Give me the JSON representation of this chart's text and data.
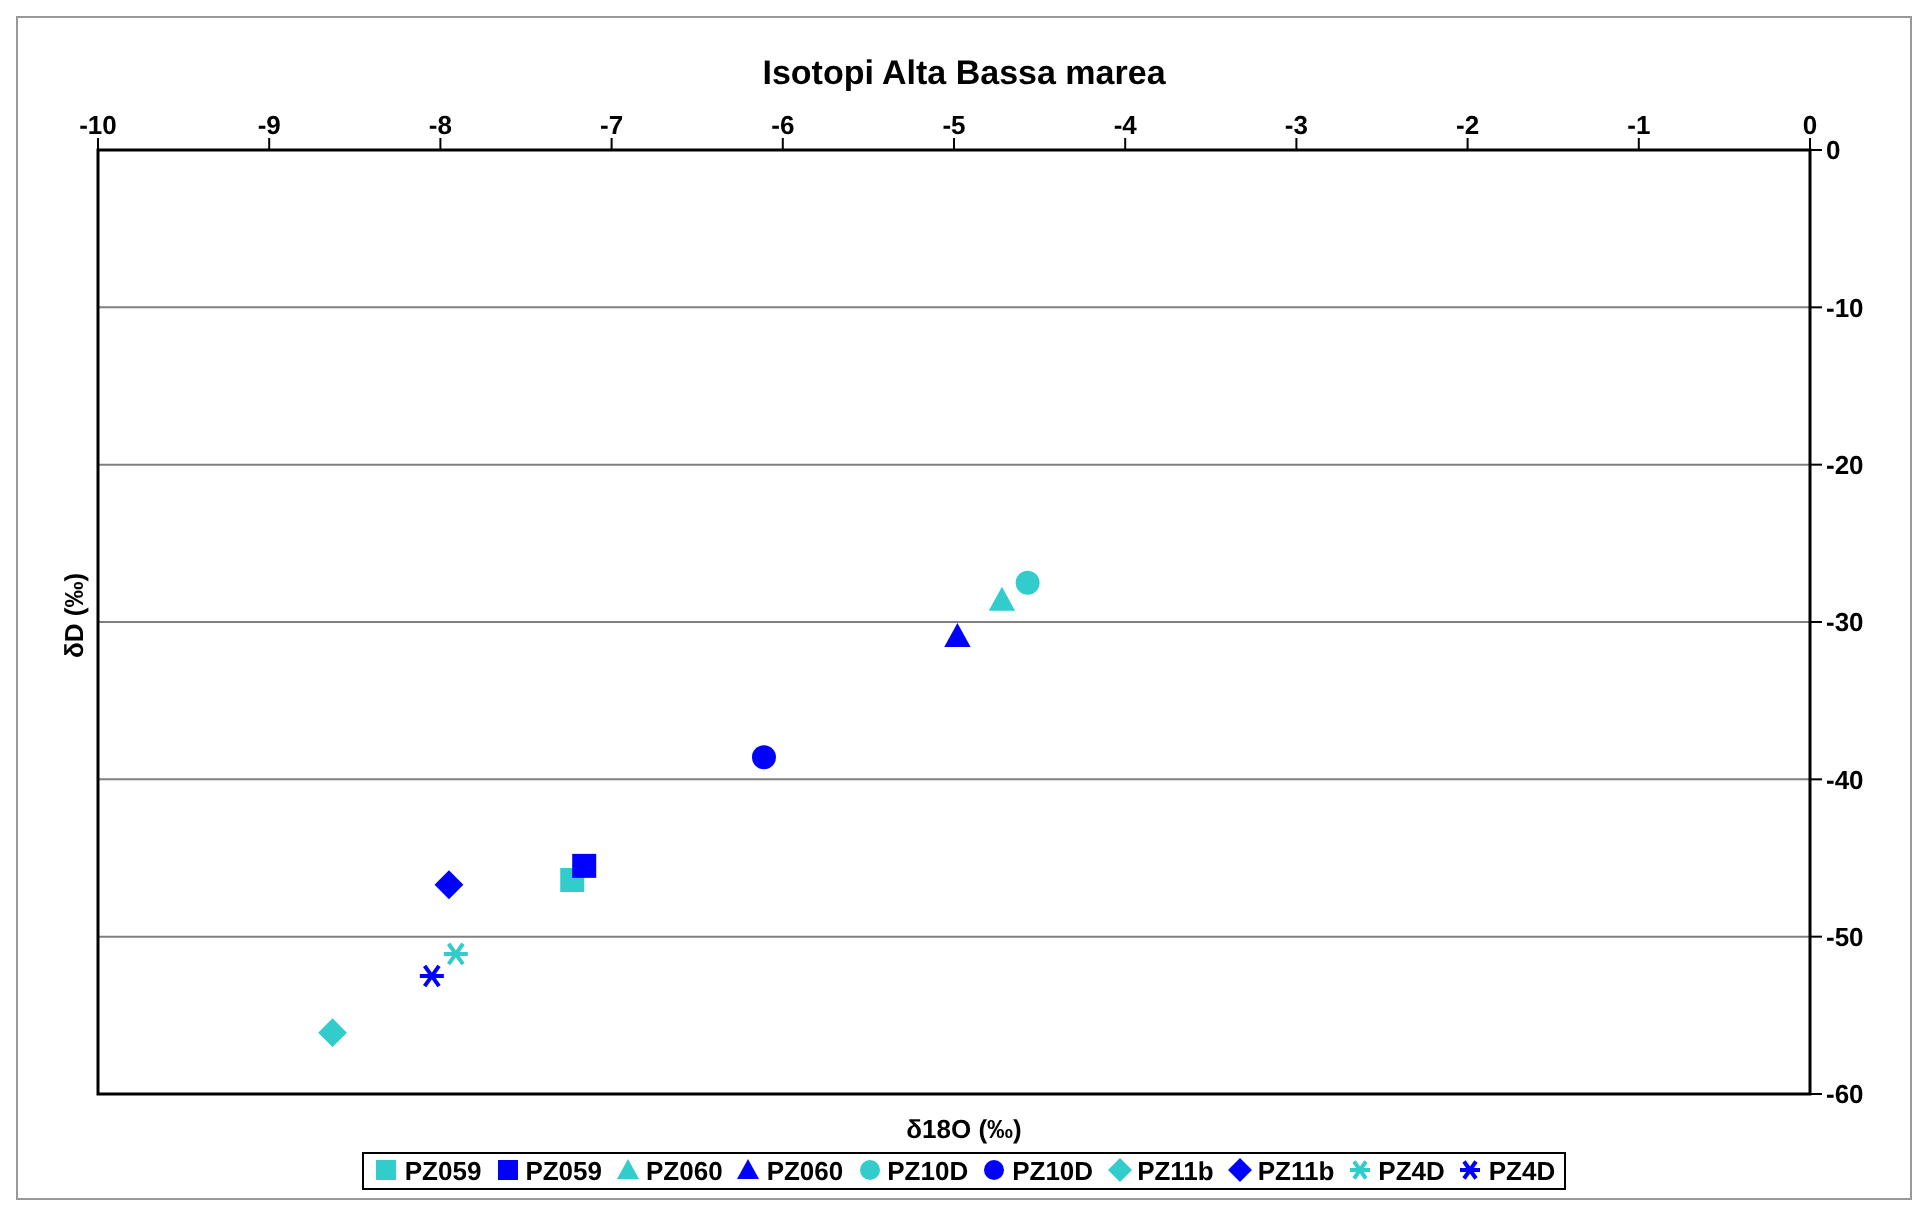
{
  "chart_data": {
    "type": "scatter",
    "title": "Isotopi Alta Bassa marea",
    "xlabel": "δ18O (‰)",
    "ylabel": "δD (‰)",
    "xlim": [
      -10,
      0
    ],
    "xticks": [
      -10,
      -9,
      -8,
      -7,
      -6,
      -5,
      -4,
      -3,
      -2,
      -1,
      0
    ],
    "ylim": [
      -60,
      0
    ],
    "yticks": [
      -60,
      -50,
      -40,
      -30,
      -20,
      -10,
      0
    ],
    "grid": "y",
    "legend": "bottom",
    "series": [
      {
        "name": "PZ059",
        "color": "#33cccc",
        "marker": "square",
        "x": [
          -7.23
        ],
        "values": [
          -46.4
        ]
      },
      {
        "name": "PZ059",
        "color": "#0000ff",
        "marker": "square",
        "x": [
          -7.16
        ],
        "values": [
          -45.5
        ]
      },
      {
        "name": "PZ060",
        "color": "#33cccc",
        "marker": "triangle",
        "x": [
          -4.72
        ],
        "values": [
          -28.6
        ]
      },
      {
        "name": "PZ060",
        "color": "#0000ff",
        "marker": "triangle",
        "x": [
          -4.98
        ],
        "values": [
          -30.9
        ]
      },
      {
        "name": "PZ10D",
        "color": "#33cccc",
        "marker": "circle",
        "x": [
          -4.57
        ],
        "values": [
          -27.5
        ]
      },
      {
        "name": "PZ10D",
        "color": "#0000ff",
        "marker": "circle",
        "x": [
          -6.11
        ],
        "values": [
          -38.6
        ]
      },
      {
        "name": "PZ11b",
        "color": "#33cccc",
        "marker": "diamond",
        "x": [
          -8.63
        ],
        "values": [
          -56.1
        ]
      },
      {
        "name": "PZ11b",
        "color": "#0000ff",
        "marker": "diamond",
        "x": [
          -7.95
        ],
        "values": [
          -46.7
        ]
      },
      {
        "name": "PZ4D",
        "color": "#33cccc",
        "marker": "cross",
        "x": [
          -7.91
        ],
        "values": [
          -51.1
        ]
      },
      {
        "name": "PZ4D",
        "color": "#0000ff",
        "marker": "cross",
        "x": [
          -8.05
        ],
        "values": [
          -52.5
        ]
      }
    ]
  }
}
